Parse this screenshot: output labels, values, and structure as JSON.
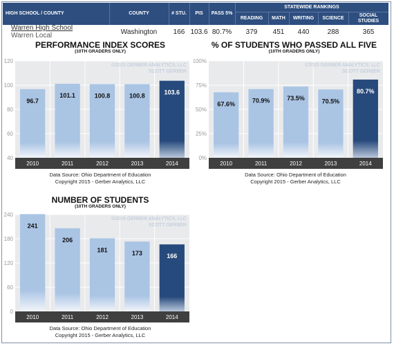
{
  "header": {
    "school_county": "HIGH SCHOOL / COUNTY",
    "county": "COUNTY",
    "num_students": "# STU.",
    "pis": "PIS",
    "pass5": "PASS 5%",
    "statewide": "STATEWIDE RANKINGS",
    "reading": "READING",
    "math": "MATH",
    "writing": "WRITING",
    "science": "SCIENCE",
    "social_studies": "SOCIAL STUDIES"
  },
  "row": {
    "school": "Warren High School",
    "district": "Warren Local",
    "county": "Washington",
    "students": "166",
    "pis": "103.6",
    "pass5": "80.7%",
    "reading": "379",
    "math": "451",
    "writing": "440",
    "science": "288",
    "social_studies": "365"
  },
  "watermark": [
    "©2015 GERBER ANALYTICS, LLC",
    "SCOTT GERBER"
  ],
  "colors": {
    "header_bg": "#2d4e7f",
    "bar_light": "#aac4e4",
    "bar_dark": "#274a7c",
    "plot_bg": "#e9eaec",
    "axis_band": "#3f3f3f"
  },
  "chart_data": [
    {
      "type": "bar",
      "title": "PERFORMANCE INDEX SCORES",
      "subtitle": "(10TH GRADERS ONLY)",
      "categories": [
        "2010",
        "2011",
        "2012",
        "2013",
        "2014"
      ],
      "values": [
        96.7,
        101.1,
        100.8,
        100.8,
        103.6
      ],
      "value_labels": [
        "96.7",
        "101.1",
        "100.8",
        "100.8",
        "103.6"
      ],
      "yticks": [
        "120",
        "100",
        "80",
        "60",
        "40"
      ],
      "ylim": [
        40,
        120
      ],
      "grid": true,
      "footer": [
        "Data Source: Ohio Department of Education",
        "Copyright 2015 - Gerber Analytics, LLC"
      ]
    },
    {
      "type": "bar",
      "title": "% OF STUDENTS WHO PASSED ALL FIVE",
      "subtitle": "(10TH GRADERS ONLY)",
      "categories": [
        "2010",
        "2011",
        "2012",
        "2013",
        "2014"
      ],
      "values": [
        67.6,
        70.9,
        73.5,
        70.5,
        80.7
      ],
      "value_labels": [
        "67.6%",
        "70.9%",
        "73.5%",
        "70.5%",
        "80.7%"
      ],
      "yticks": [
        "100%",
        "75%",
        "50%",
        "25%",
        "0%"
      ],
      "ylim": [
        0,
        100
      ],
      "grid": true,
      "footer": [
        "Data Source: Ohio Department of Education",
        "Copyright 2015 - Gerber Analytics, LLC"
      ]
    },
    {
      "type": "bar",
      "title": "NUMBER OF STUDENTS",
      "subtitle": "(10TH GRADERS ONLY)",
      "categories": [
        "2010",
        "2011",
        "2012",
        "2013",
        "2014"
      ],
      "values": [
        241,
        206,
        181,
        173,
        166
      ],
      "value_labels": [
        "241",
        "206",
        "181",
        "173",
        "166"
      ],
      "yticks": [
        "240",
        "180",
        "120",
        "60",
        "0"
      ],
      "ylim": [
        0,
        240
      ],
      "grid": true,
      "footer": [
        "Data Source: Ohio Department of Education",
        "Copyright 2015 - Gerber Analytics, LLC"
      ]
    }
  ]
}
